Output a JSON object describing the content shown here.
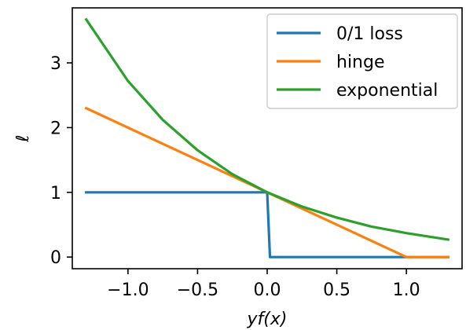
{
  "chart_data": {
    "type": "line",
    "xlabel": "yf(x)",
    "ylabel": "ℓ",
    "xlim": [
      -1.4,
      1.4
    ],
    "ylim": [
      -0.18,
      3.85
    ],
    "xticks": [
      -1.0,
      -0.5,
      0.0,
      0.5,
      1.0
    ],
    "xtick_labels": [
      "−1.0",
      "−0.5",
      "0.0",
      "0.5",
      "1.0"
    ],
    "yticks": [
      0,
      1,
      2,
      3
    ],
    "ytick_labels": [
      "0",
      "1",
      "2",
      "3"
    ],
    "grid": false,
    "legend_position": "top-right",
    "series": [
      {
        "name": "0/1 loss",
        "color": "#1f77b4",
        "x": [
          -1.3,
          0.0,
          0.02,
          1.3
        ],
        "y": [
          1,
          1,
          0,
          0
        ]
      },
      {
        "name": "hinge",
        "color": "#ff7f0e",
        "x": [
          -1.3,
          -1.0,
          -0.5,
          0.0,
          0.5,
          1.0,
          1.3
        ],
        "y": [
          2.3,
          2.0,
          1.5,
          1.0,
          0.5,
          0.0,
          0.0
        ]
      },
      {
        "name": "exponential",
        "color": "#2ca02c",
        "x": [
          -1.3,
          -1.0,
          -0.75,
          -0.5,
          -0.25,
          0.0,
          0.25,
          0.5,
          0.75,
          1.0,
          1.3
        ],
        "y": [
          3.67,
          2.72,
          2.12,
          1.65,
          1.28,
          1.0,
          0.78,
          0.61,
          0.47,
          0.37,
          0.27
        ]
      }
    ]
  }
}
